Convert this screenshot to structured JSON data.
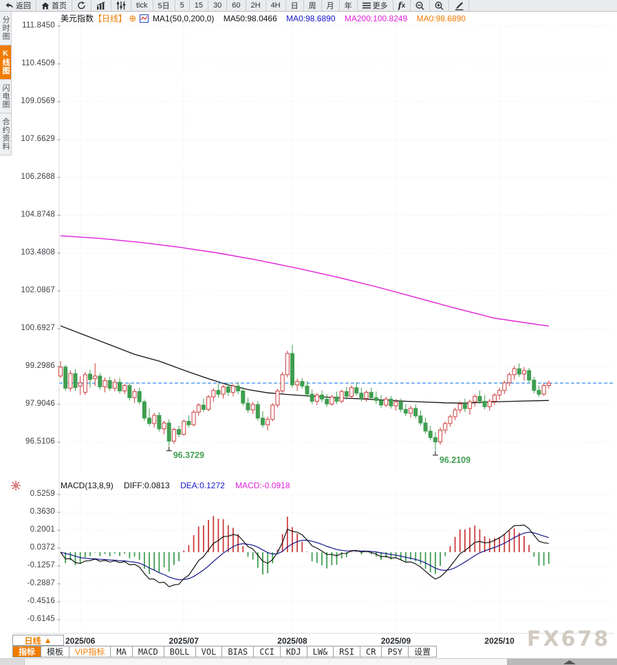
{
  "toolbar": {
    "items": [
      {
        "name": "back-button",
        "icon": "back-icon",
        "label": "返回"
      },
      {
        "name": "home-button",
        "icon": "home-icon",
        "label": "首页"
      },
      {
        "name": "refresh-button",
        "icon": "refresh-icon",
        "label": ""
      },
      {
        "name": "bar-chart-button",
        "icon": "bar-chart-icon",
        "label": ""
      },
      {
        "name": "indicator-sliders-button",
        "icon": "sliders-icon",
        "label": ""
      },
      {
        "name": "interval-tick",
        "label": "tick"
      },
      {
        "name": "interval-5day",
        "label": "5日"
      },
      {
        "name": "interval-5min",
        "label": "5"
      },
      {
        "name": "interval-15min",
        "label": "15"
      },
      {
        "name": "interval-30min",
        "label": "30"
      },
      {
        "name": "interval-60min",
        "label": "60"
      },
      {
        "name": "interval-2h",
        "label": "2H"
      },
      {
        "name": "interval-4h",
        "label": "4H"
      },
      {
        "name": "interval-day",
        "label": "日"
      },
      {
        "name": "interval-week",
        "label": "周"
      },
      {
        "name": "interval-month",
        "label": "月"
      },
      {
        "name": "interval-year",
        "label": "年"
      },
      {
        "name": "more-button",
        "icon": "menu-icon",
        "label": "更多"
      },
      {
        "name": "fx-indicator-button",
        "icon": "fx-icon",
        "label": ""
      },
      {
        "name": "zoom-out-button",
        "icon": "zoom-out-icon",
        "label": ""
      },
      {
        "name": "zoom-in-button",
        "icon": "zoom-in-icon",
        "label": ""
      },
      {
        "name": "draw-button",
        "icon": "draw-icon",
        "label": ""
      }
    ]
  },
  "sidebar": {
    "items": [
      {
        "name": "sidebar-tab-time-chart",
        "label": "分时图",
        "active": false
      },
      {
        "name": "sidebar-tab-kline-chart",
        "label": "K线图",
        "active": true
      },
      {
        "name": "sidebar-tab-lightning-chart",
        "label": "闪电图",
        "active": false
      },
      {
        "name": "sidebar-tab-contract-info",
        "label": "合约资料",
        "active": false
      }
    ]
  },
  "price_panel": {
    "title": "美元指数",
    "period_tag": "【日线】",
    "expand_glyph": "⊕",
    "legend": {
      "ma_settings": "MA1(50,0,200,0)",
      "ma50": "MA50:98.0466",
      "ma0_blue": "MA0:98.6890",
      "ma200": "MA200:100.8249",
      "ma0_orange": "MA0:98.6890"
    }
  },
  "macd_panel": {
    "legend": {
      "title": "MACD(13,8,9)",
      "diff": "DIFF:0.0813",
      "dea": "DEA:0.1272",
      "macd": "MACD:-0.0918"
    }
  },
  "bottom": {
    "period_selector": "日线",
    "period_arrow": "▲",
    "tabs": [
      {
        "name": "tab-indicators",
        "label": "指标",
        "active": true,
        "cjk": true
      },
      {
        "name": "tab-templates",
        "label": "模板",
        "cjk": true
      },
      {
        "name": "tab-vip-indicators",
        "label": "VIP指标",
        "vip": true,
        "cjk": true
      },
      {
        "name": "tab-ma",
        "label": "MA"
      },
      {
        "name": "tab-macd",
        "label": "MACD"
      },
      {
        "name": "tab-boll",
        "label": "BOLL"
      },
      {
        "name": "tab-vol",
        "label": "VOL"
      },
      {
        "name": "tab-bias",
        "label": "BIAS"
      },
      {
        "name": "tab-cci",
        "label": "CCI"
      },
      {
        "name": "tab-kdj",
        "label": "KDJ"
      },
      {
        "name": "tab-lwr",
        "label": "LW&"
      },
      {
        "name": "tab-rsi",
        "label": "RSI"
      },
      {
        "name": "tab-cr",
        "label": "CR"
      },
      {
        "name": "tab-psy",
        "label": "PSY"
      },
      {
        "name": "tab-settings",
        "label": "设置",
        "cjk": true
      }
    ]
  },
  "watermark": "FX678",
  "colors": {
    "up": "#cc3b3b",
    "down": "#3f9e50",
    "ma50_line": "#111111",
    "ma200_line": "#e020d8",
    "price_dashed_line": "#1e7fe8",
    "diff_line": "#111111",
    "dea_line": "#14148c",
    "grid": "#e4e4e4",
    "accent_orange": "#f07c00",
    "legend_blue": "#1414cc",
    "legend_magenta": "#e020d8"
  },
  "chart_data": {
    "type": "candlestick+macd",
    "title": "美元指数 日线 (USD Index Daily)",
    "legend_position": "top",
    "grid": true,
    "price_axis_labels": [
      "111.8450",
      "110.4509",
      "109.0569",
      "107.6629",
      "106.2688",
      "104.8748",
      "103.4808",
      "102.0867",
      "100.6927",
      "99.2986",
      "97.9046",
      "96.5106"
    ],
    "price_axis_top_value": 111.845,
    "price_axis_step": 1.394,
    "macd_axis_labels": [
      "0.5259",
      "0.3630",
      "0.2001",
      "0.0372",
      "-0.1257",
      "-0.2887",
      "-0.4516",
      "-0.6145"
    ],
    "x_axis": [
      {
        "label": "2025/06",
        "i": 4
      },
      {
        "label": "2025/07",
        "i": 25
      },
      {
        "label": "2025/08",
        "i": 47
      },
      {
        "label": "2025/09",
        "i": 68
      },
      {
        "label": "2025/10",
        "i": 89
      }
    ],
    "last_price": 98.689,
    "ma50_value": 98.0466,
    "ma200_value": 100.8249,
    "macd_values": {
      "diff": 0.0813,
      "dea": 0.1272,
      "macd": -0.0918
    },
    "lows": [
      {
        "value": 96.3729,
        "label": "96.3729",
        "i": 22
      },
      {
        "value": 96.2109,
        "label": "96.2109",
        "i": 76
      }
    ],
    "candles_ohlc": [
      [
        98.95,
        99.5,
        98.88,
        99.28
      ],
      [
        99.28,
        99.36,
        98.4,
        98.5
      ],
      [
        98.5,
        99.16,
        98.38,
        99.04
      ],
      [
        99.04,
        99.2,
        98.4,
        98.52
      ],
      [
        98.58,
        98.95,
        98.25,
        98.7
      ],
      [
        98.35,
        99.1,
        98.25,
        99.0
      ],
      [
        99.02,
        99.18,
        98.52,
        98.82
      ],
      [
        98.85,
        99.42,
        98.58,
        98.95
      ],
      [
        98.95,
        99.06,
        98.45,
        98.55
      ],
      [
        98.55,
        98.9,
        98.35,
        98.78
      ],
      [
        98.78,
        98.92,
        98.4,
        98.5
      ],
      [
        98.5,
        98.85,
        98.38,
        98.72
      ],
      [
        98.72,
        98.88,
        98.3,
        98.4
      ],
      [
        98.4,
        98.66,
        98.28,
        98.6
      ],
      [
        98.6,
        98.7,
        98.05,
        98.15
      ],
      [
        98.15,
        98.48,
        97.95,
        98.38
      ],
      [
        98.38,
        98.52,
        97.9,
        98.0
      ],
      [
        98.0,
        98.08,
        97.3,
        97.4
      ],
      [
        97.4,
        97.75,
        97.1,
        97.2
      ],
      [
        97.2,
        97.6,
        97.05,
        97.5
      ],
      [
        97.5,
        97.62,
        96.9,
        97.0
      ],
      [
        97.0,
        97.3,
        96.8,
        97.22
      ],
      [
        97.22,
        97.35,
        96.37,
        96.55
      ],
      [
        96.55,
        97.05,
        96.45,
        96.98
      ],
      [
        96.98,
        97.12,
        96.7,
        96.8
      ],
      [
        96.8,
        97.35,
        96.75,
        97.28
      ],
      [
        97.28,
        97.5,
        97.05,
        97.15
      ],
      [
        97.15,
        97.7,
        97.1,
        97.62
      ],
      [
        97.62,
        97.95,
        97.48,
        97.88
      ],
      [
        97.88,
        98.12,
        97.62,
        97.72
      ],
      [
        97.72,
        98.25,
        97.65,
        98.18
      ],
      [
        98.18,
        98.5,
        98.0,
        98.42
      ],
      [
        98.42,
        98.68,
        98.15,
        98.28
      ],
      [
        98.28,
        98.62,
        98.12,
        98.55
      ],
      [
        98.55,
        98.7,
        98.22,
        98.35
      ],
      [
        98.35,
        98.65,
        98.2,
        98.58
      ],
      [
        98.58,
        98.72,
        98.28,
        98.4
      ],
      [
        98.4,
        98.55,
        97.85,
        97.95
      ],
      [
        97.95,
        98.15,
        97.6,
        97.7
      ],
      [
        97.7,
        98.0,
        97.55,
        97.9
      ],
      [
        97.9,
        98.02,
        97.3,
        97.4
      ],
      [
        97.4,
        97.65,
        97.05,
        97.15
      ],
      [
        97.15,
        97.45,
        96.95,
        97.35
      ],
      [
        97.35,
        97.95,
        97.28,
        97.88
      ],
      [
        97.88,
        98.48,
        97.8,
        98.4
      ],
      [
        98.4,
        99.1,
        98.32,
        99.0
      ],
      [
        99.0,
        99.88,
        98.9,
        99.78
      ],
      [
        99.78,
        100.1,
        98.52,
        98.62
      ],
      [
        98.62,
        98.85,
        98.4,
        98.75
      ],
      [
        98.75,
        98.88,
        98.48,
        98.58
      ],
      [
        98.58,
        98.76,
        98.18,
        98.28
      ],
      [
        98.28,
        98.45,
        97.92,
        98.02
      ],
      [
        98.02,
        98.32,
        97.88,
        98.25
      ],
      [
        98.25,
        98.42,
        97.98,
        98.1
      ],
      [
        98.1,
        98.28,
        97.82,
        97.92
      ],
      [
        97.92,
        98.25,
        97.85,
        98.18
      ],
      [
        98.18,
        98.38,
        97.92,
        98.02
      ],
      [
        98.02,
        98.45,
        97.95,
        98.38
      ],
      [
        98.38,
        98.55,
        98.08,
        98.2
      ],
      [
        98.2,
        98.6,
        98.12,
        98.52
      ],
      [
        98.52,
        98.72,
        98.22,
        98.32
      ],
      [
        98.32,
        98.52,
        98.02,
        98.12
      ],
      [
        98.12,
        98.42,
        98.0,
        98.35
      ],
      [
        98.35,
        98.52,
        98.05,
        98.15
      ],
      [
        98.15,
        98.38,
        97.92,
        98.05
      ],
      [
        98.05,
        98.25,
        97.78,
        97.88
      ],
      [
        97.88,
        98.18,
        97.8,
        98.1
      ],
      [
        98.1,
        98.22,
        97.75,
        97.85
      ],
      [
        97.85,
        98.1,
        97.68,
        98.0
      ],
      [
        98.0,
        98.12,
        97.62,
        97.72
      ],
      [
        97.72,
        97.92,
        97.48,
        97.58
      ],
      [
        97.58,
        97.85,
        97.42,
        97.76
      ],
      [
        97.76,
        97.9,
        97.38,
        97.48
      ],
      [
        97.48,
        97.68,
        97.12,
        97.22
      ],
      [
        97.22,
        97.42,
        96.82,
        96.92
      ],
      [
        96.92,
        97.12,
        96.58,
        96.68
      ],
      [
        96.68,
        96.88,
        96.21,
        96.52
      ],
      [
        96.52,
        97.05,
        96.42,
        96.96
      ],
      [
        96.96,
        97.28,
        96.82,
        97.2
      ],
      [
        97.2,
        97.52,
        97.08,
        97.45
      ],
      [
        97.45,
        97.78,
        97.32,
        97.7
      ],
      [
        97.7,
        98.02,
        97.58,
        97.92
      ],
      [
        97.92,
        98.12,
        97.62,
        97.75
      ],
      [
        97.75,
        98.08,
        97.52,
        98.0
      ],
      [
        98.0,
        98.28,
        97.82,
        98.2
      ],
      [
        98.2,
        98.42,
        97.92,
        98.02
      ],
      [
        98.02,
        98.25,
        97.72,
        97.82
      ],
      [
        97.82,
        98.1,
        97.68,
        98.02
      ],
      [
        98.02,
        98.32,
        97.88,
        98.25
      ],
      [
        98.25,
        98.52,
        98.08,
        98.42
      ],
      [
        98.42,
        98.78,
        98.28,
        98.7
      ],
      [
        98.7,
        99.08,
        98.58,
        99.0
      ],
      [
        99.0,
        99.32,
        98.82,
        99.22
      ],
      [
        99.22,
        99.42,
        98.92,
        99.02
      ],
      [
        99.02,
        99.28,
        98.78,
        99.15
      ],
      [
        99.15,
        99.25,
        98.68,
        98.8
      ],
      [
        98.8,
        98.92,
        98.32,
        98.42
      ],
      [
        98.42,
        98.6,
        98.18,
        98.28
      ],
      [
        98.28,
        98.68,
        98.22,
        98.6
      ],
      [
        98.6,
        98.78,
        98.48,
        98.69
      ]
    ],
    "ma50_points": [
      [
        0,
        100.8
      ],
      [
        5,
        100.45
      ],
      [
        10,
        100.1
      ],
      [
        15,
        99.75
      ],
      [
        20,
        99.5
      ],
      [
        23,
        99.3
      ],
      [
        26,
        99.1
      ],
      [
        30,
        98.85
      ],
      [
        34,
        98.62
      ],
      [
        38,
        98.45
      ],
      [
        42,
        98.33
      ],
      [
        46,
        98.27
      ],
      [
        50,
        98.22
      ],
      [
        54,
        98.17
      ],
      [
        58,
        98.13
      ],
      [
        62,
        98.1
      ],
      [
        66,
        98.06
      ],
      [
        70,
        98.02
      ],
      [
        74,
        97.99
      ],
      [
        78,
        97.96
      ],
      [
        82,
        97.95
      ],
      [
        86,
        97.98
      ],
      [
        90,
        98.01
      ],
      [
        94,
        98.03
      ],
      [
        99,
        98.05
      ]
    ],
    "ma200_points": [
      [
        0,
        104.12
      ],
      [
        8,
        104.02
      ],
      [
        16,
        103.88
      ],
      [
        24,
        103.7
      ],
      [
        32,
        103.48
      ],
      [
        40,
        103.22
      ],
      [
        48,
        102.92
      ],
      [
        56,
        102.6
      ],
      [
        64,
        102.24
      ],
      [
        72,
        101.85
      ],
      [
        80,
        101.45
      ],
      [
        88,
        101.08
      ],
      [
        94,
        100.92
      ],
      [
        99,
        100.79
      ]
    ]
  }
}
